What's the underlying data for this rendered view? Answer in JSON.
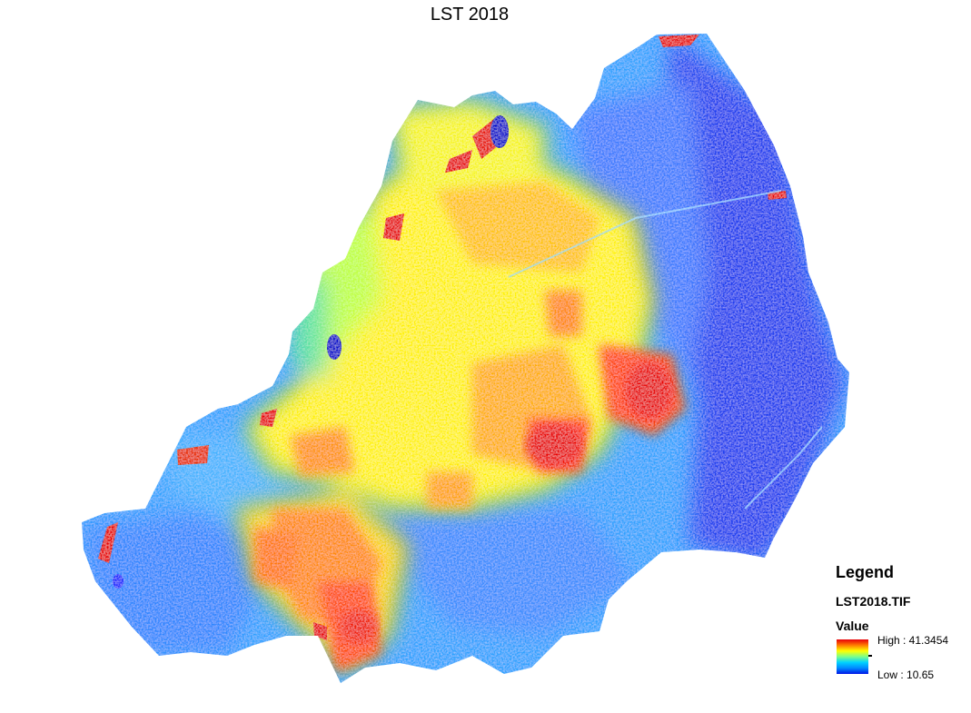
{
  "map": {
    "title": "LST 2018"
  },
  "legend": {
    "heading": "Legend",
    "layer_name": "LST2018.TIF",
    "field_label": "Value",
    "high_label": "High : 41.3454",
    "low_label": "Low : 10.65",
    "ramp_colors": [
      "#e8000b",
      "#ff7a00",
      "#ffff00",
      "#7dff8a",
      "#00d2ff",
      "#0088ff",
      "#0014e6"
    ]
  }
}
